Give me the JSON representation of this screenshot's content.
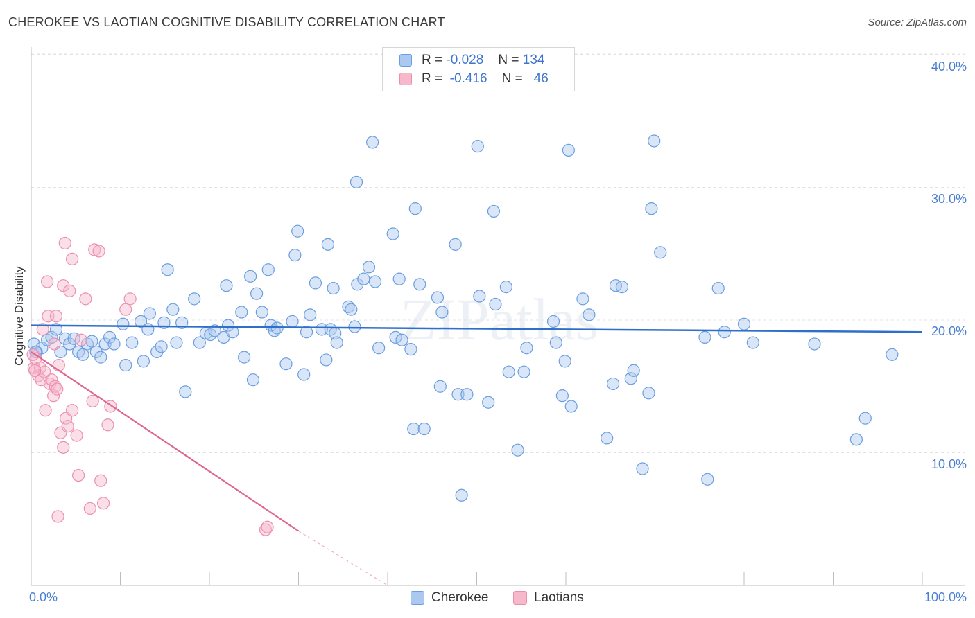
{
  "title": "CHEROKEE VS LAOTIAN COGNITIVE DISABILITY CORRELATION CHART",
  "source": "Source: ZipAtlas.com",
  "watermark": "ZIPatlas",
  "colors": {
    "cherokee_fill": "#aac8f0",
    "cherokee_stroke": "#6a9ee0",
    "cherokee_line": "#2f6fc9",
    "laotian_fill": "#f7b8cb",
    "laotian_stroke": "#eb8fad",
    "laotian_line": "#e0658f",
    "tick_text": "#4a7fcf"
  },
  "legend": {
    "rows": [
      {
        "r_label": "R =",
        "r_value": "-0.028",
        "n_label": "N =",
        "n_value": "134"
      },
      {
        "r_label": "R =",
        "r_value": "-0.416",
        "n_label": "N =",
        "n_value": "46"
      }
    ]
  },
  "bottom_legend": [
    "Cherokee",
    "Laotians"
  ],
  "chart_data": {
    "type": "scatter",
    "title": "CHEROKEE VS LAOTIAN COGNITIVE DISABILITY CORRELATION CHART",
    "xlabel": "",
    "ylabel": "Cognitive Disability",
    "xlim": [
      0,
      100
    ],
    "ylim": [
      0,
      42
    ],
    "x_tick_labels": [
      "0.0%",
      "100.0%"
    ],
    "y_ticks": [
      10,
      20,
      30,
      40
    ],
    "y_tick_labels": [
      "10.0%",
      "20.0%",
      "30.0%",
      "40.0%"
    ],
    "grid": true,
    "legend_position": "top-center",
    "series": [
      {
        "name": "Cherokee",
        "r": -0.028,
        "n": 134,
        "trend": {
          "x": [
            0,
            100
          ],
          "y": [
            19.6,
            19.1
          ]
        },
        "points": [
          [
            0.3,
            18.2
          ],
          [
            0.6,
            17.6
          ],
          [
            1.2,
            17.9
          ],
          [
            1.8,
            18.5
          ],
          [
            2.3,
            18.7
          ],
          [
            2.8,
            19.3
          ],
          [
            3.3,
            17.6
          ],
          [
            3.8,
            18.6
          ],
          [
            4.3,
            18.2
          ],
          [
            4.8,
            18.6
          ],
          [
            5.3,
            17.6
          ],
          [
            5.8,
            17.4
          ],
          [
            6.3,
            18.2
          ],
          [
            6.8,
            18.4
          ],
          [
            7.3,
            17.6
          ],
          [
            7.8,
            17.2
          ],
          [
            8.3,
            18.2
          ],
          [
            8.8,
            18.7
          ],
          [
            9.3,
            18.2
          ],
          [
            10.3,
            19.7
          ],
          [
            10.6,
            16.6
          ],
          [
            11.3,
            18.3
          ],
          [
            12.3,
            19.9
          ],
          [
            12.6,
            16.9
          ],
          [
            13.1,
            19.3
          ],
          [
            13.3,
            20.5
          ],
          [
            14.1,
            17.6
          ],
          [
            14.6,
            18.0
          ],
          [
            14.9,
            19.8
          ],
          [
            15.3,
            23.8
          ],
          [
            15.9,
            20.8
          ],
          [
            16.3,
            18.3
          ],
          [
            16.9,
            19.8
          ],
          [
            17.3,
            14.6
          ],
          [
            18.3,
            21.6
          ],
          [
            18.9,
            18.3
          ],
          [
            19.6,
            19.0
          ],
          [
            20.1,
            18.9
          ],
          [
            20.6,
            19.2
          ],
          [
            21.6,
            18.7
          ],
          [
            21.9,
            22.6
          ],
          [
            22.1,
            19.6
          ],
          [
            22.6,
            19.1
          ],
          [
            23.6,
            20.6
          ],
          [
            23.9,
            17.2
          ],
          [
            24.6,
            23.3
          ],
          [
            24.9,
            15.5
          ],
          [
            25.3,
            22.0
          ],
          [
            25.9,
            20.6
          ],
          [
            26.6,
            23.8
          ],
          [
            26.9,
            19.6
          ],
          [
            27.3,
            19.2
          ],
          [
            27.6,
            19.4
          ],
          [
            28.6,
            16.7
          ],
          [
            29.3,
            19.9
          ],
          [
            29.6,
            24.9
          ],
          [
            29.9,
            26.7
          ],
          [
            30.6,
            15.9
          ],
          [
            30.9,
            19.1
          ],
          [
            31.3,
            20.4
          ],
          [
            31.9,
            22.8
          ],
          [
            32.6,
            19.3
          ],
          [
            33.1,
            17.0
          ],
          [
            33.3,
            25.7
          ],
          [
            33.6,
            19.3
          ],
          [
            33.9,
            22.4
          ],
          [
            34.1,
            19.0
          ],
          [
            34.3,
            18.3
          ],
          [
            35.6,
            21.0
          ],
          [
            35.9,
            20.8
          ],
          [
            36.3,
            19.5
          ],
          [
            36.6,
            22.7
          ],
          [
            37.3,
            23.1
          ],
          [
            36.5,
            30.4
          ],
          [
            37.9,
            24.0
          ],
          [
            38.6,
            22.9
          ],
          [
            38.3,
            33.4
          ],
          [
            39.0,
            17.9
          ],
          [
            40.6,
            26.5
          ],
          [
            40.9,
            18.7
          ],
          [
            41.3,
            23.1
          ],
          [
            41.6,
            18.5
          ],
          [
            43.1,
            28.4
          ],
          [
            42.6,
            17.8
          ],
          [
            42.9,
            11.8
          ],
          [
            43.6,
            22.7
          ],
          [
            44.1,
            11.8
          ],
          [
            45.6,
            21.7
          ],
          [
            45.9,
            15.0
          ],
          [
            46.1,
            20.6
          ],
          [
            47.6,
            25.7
          ],
          [
            47.9,
            14.4
          ],
          [
            48.3,
            6.8
          ],
          [
            48.9,
            14.4
          ],
          [
            50.1,
            33.1
          ],
          [
            50.3,
            21.8
          ],
          [
            51.3,
            13.8
          ],
          [
            51.9,
            28.2
          ],
          [
            52.1,
            21.2
          ],
          [
            53.3,
            22.5
          ],
          [
            53.6,
            16.1
          ],
          [
            54.6,
            10.2
          ],
          [
            55.3,
            16.1
          ],
          [
            55.6,
            17.9
          ],
          [
            58.6,
            19.9
          ],
          [
            58.9,
            18.3
          ],
          [
            59.6,
            14.3
          ],
          [
            59.9,
            16.9
          ],
          [
            60.3,
            32.8
          ],
          [
            60.6,
            13.5
          ],
          [
            61.9,
            21.6
          ],
          [
            62.6,
            20.4
          ],
          [
            64.6,
            11.1
          ],
          [
            65.3,
            15.2
          ],
          [
            65.6,
            22.6
          ],
          [
            66.3,
            22.5
          ],
          [
            67.3,
            15.6
          ],
          [
            67.6,
            16.2
          ],
          [
            68.6,
            8.8
          ],
          [
            69.3,
            14.5
          ],
          [
            69.6,
            28.4
          ],
          [
            69.9,
            33.5
          ],
          [
            70.6,
            25.1
          ],
          [
            75.6,
            18.7
          ],
          [
            75.9,
            8.0
          ],
          [
            77.1,
            22.4
          ],
          [
            77.8,
            19.1
          ],
          [
            80.0,
            19.7
          ],
          [
            81.0,
            18.3
          ],
          [
            87.9,
            18.2
          ],
          [
            92.6,
            11.0
          ],
          [
            93.6,
            12.6
          ],
          [
            96.6,
            17.4
          ],
          [
            0.5,
            17.6
          ]
        ]
      },
      {
        "name": "Laotians",
        "r": -0.416,
        "n": 46,
        "trend": {
          "x": [
            0,
            30
          ],
          "y": [
            17.6,
            4.1
          ]
        },
        "dashed_extension": {
          "x": [
            30,
            40
          ],
          "y": [
            4.1,
            -0.4
          ]
        },
        "points": [
          [
            0.3,
            16.4
          ],
          [
            0.5,
            17.1
          ],
          [
            0.8,
            15.8
          ],
          [
            1.0,
            16.4
          ],
          [
            1.1,
            15.5
          ],
          [
            1.3,
            19.3
          ],
          [
            1.5,
            16.1
          ],
          [
            1.6,
            13.2
          ],
          [
            1.8,
            22.9
          ],
          [
            1.9,
            20.3
          ],
          [
            2.1,
            15.2
          ],
          [
            2.3,
            15.5
          ],
          [
            2.5,
            14.3
          ],
          [
            2.6,
            18.2
          ],
          [
            2.7,
            15.0
          ],
          [
            2.8,
            20.3
          ],
          [
            3.0,
            5.2
          ],
          [
            3.1,
            16.6
          ],
          [
            3.3,
            11.5
          ],
          [
            3.6,
            22.6
          ],
          [
            3.8,
            25.8
          ],
          [
            3.9,
            12.6
          ],
          [
            4.1,
            12.0
          ],
          [
            4.3,
            22.2
          ],
          [
            4.6,
            24.6
          ],
          [
            5.1,
            11.3
          ],
          [
            5.3,
            8.3
          ],
          [
            5.6,
            18.5
          ],
          [
            6.1,
            21.6
          ],
          [
            6.6,
            5.8
          ],
          [
            6.9,
            13.9
          ],
          [
            7.1,
            25.3
          ],
          [
            7.6,
            25.2
          ],
          [
            8.1,
            6.2
          ],
          [
            8.6,
            12.1
          ],
          [
            10.6,
            20.8
          ],
          [
            11.1,
            21.6
          ],
          [
            3.6,
            10.4
          ],
          [
            4.6,
            13.2
          ],
          [
            7.8,
            7.9
          ],
          [
            8.9,
            13.5
          ],
          [
            26.3,
            4.2
          ],
          [
            26.5,
            4.4
          ],
          [
            0.2,
            17.4
          ],
          [
            0.4,
            16.2
          ],
          [
            2.9,
            14.8
          ]
        ]
      }
    ]
  }
}
